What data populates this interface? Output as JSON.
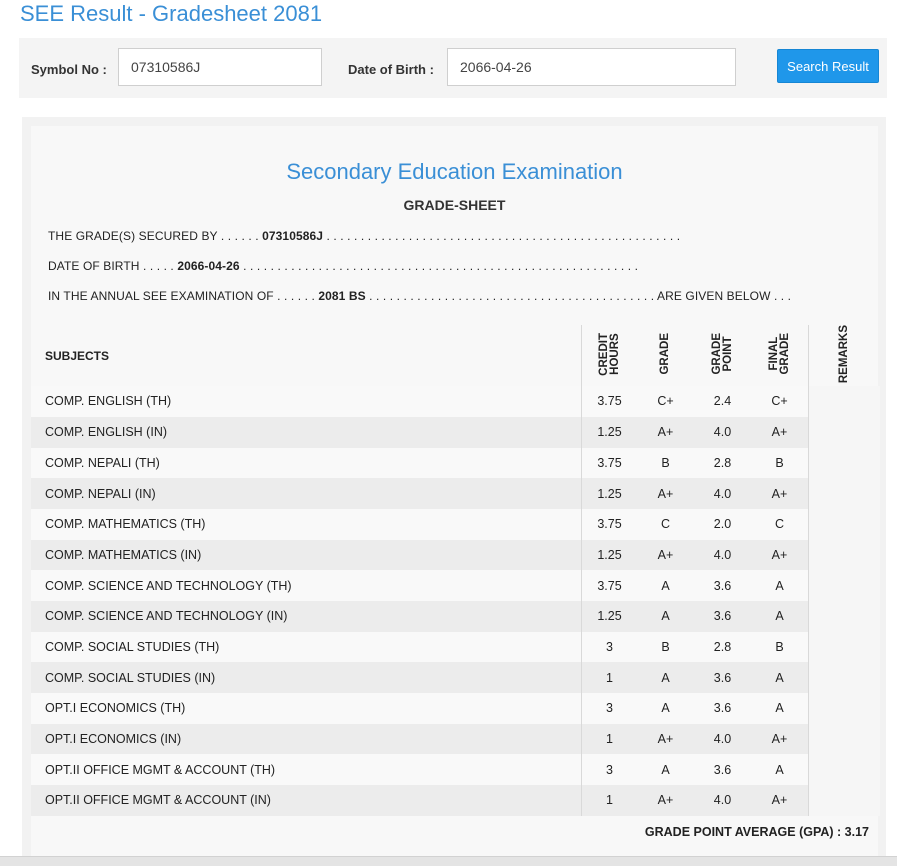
{
  "page": {
    "title": "SEE Result - Gradesheet 2081"
  },
  "search": {
    "symbol_label": "Symbol No :",
    "symbol_value": "07310586J",
    "dob_label": "Date of Birth :",
    "dob_value": "2066-04-26",
    "button_label": "Search Result"
  },
  "sheet": {
    "exam_title": "Secondary Education Examination",
    "subtitle": "GRADE-SHEET",
    "secured_by_label": "THE GRADE(S) SECURED BY . . . . . .",
    "secured_by_value": "07310586J",
    "secured_by_dots": " . . . . . . . . . . . . . . . . . . . . . . . . . . . . . . . . . . . . . . . . . . . . . . . . . . . .",
    "dob_label": "DATE OF BIRTH . . . . .",
    "dob_value": "2066-04-26",
    "dob_dots": " . . . . . . . . . . . . . . . . . . . . . . . . . . . . . . . . . . . . . . . . . . . . . . . . . . . . . . . . . .",
    "exam_label": "IN THE ANNUAL SEE EXAMINATION OF . . . . . .",
    "exam_value": "2081 BS",
    "exam_dots": " . . . . . . . . . . . . . . . . . . . . . . . . . . . . . . . . . . . . . . . . . . ",
    "exam_suffix": "ARE GIVEN BELOW . . .",
    "headers": {
      "subjects": "SUBJECTS",
      "credit_hours": "CREDIT\nHOURS",
      "grade": "GRADE",
      "grade_point": "GRADE\nPOINT",
      "final_grade": "FINAL\nGRADE",
      "remarks": "REMARKS"
    },
    "rows": [
      {
        "subject": "COMP. ENGLISH (TH)",
        "credit": "3.75",
        "grade": "C+",
        "point": "2.4",
        "final": "C+"
      },
      {
        "subject": "COMP. ENGLISH (IN)",
        "credit": "1.25",
        "grade": "A+",
        "point": "4.0",
        "final": "A+"
      },
      {
        "subject": "COMP. NEPALI (TH)",
        "credit": "3.75",
        "grade": "B",
        "point": "2.8",
        "final": "B"
      },
      {
        "subject": "COMP. NEPALI (IN)",
        "credit": "1.25",
        "grade": "A+",
        "point": "4.0",
        "final": "A+"
      },
      {
        "subject": "COMP. MATHEMATICS (TH)",
        "credit": "3.75",
        "grade": "C",
        "point": "2.0",
        "final": "C"
      },
      {
        "subject": "COMP. MATHEMATICS (IN)",
        "credit": "1.25",
        "grade": "A+",
        "point": "4.0",
        "final": "A+"
      },
      {
        "subject": "COMP. SCIENCE AND TECHNOLOGY (TH)",
        "credit": "3.75",
        "grade": "A",
        "point": "3.6",
        "final": "A"
      },
      {
        "subject": "COMP. SCIENCE AND TECHNOLOGY (IN)",
        "credit": "1.25",
        "grade": "A",
        "point": "3.6",
        "final": "A"
      },
      {
        "subject": "COMP. SOCIAL STUDIES (TH)",
        "credit": "3",
        "grade": "B",
        "point": "2.8",
        "final": "B"
      },
      {
        "subject": "COMP. SOCIAL STUDIES (IN)",
        "credit": "1",
        "grade": "A",
        "point": "3.6",
        "final": "A"
      },
      {
        "subject": "OPT.I ECONOMICS (TH)",
        "credit": "3",
        "grade": "A",
        "point": "3.6",
        "final": "A"
      },
      {
        "subject": "OPT.I ECONOMICS (IN)",
        "credit": "1",
        "grade": "A+",
        "point": "4.0",
        "final": "A+"
      },
      {
        "subject": "OPT.II OFFICE MGMT & ACCOUNT (TH)",
        "credit": "3",
        "grade": "A",
        "point": "3.6",
        "final": "A"
      },
      {
        "subject": "OPT.II OFFICE MGMT & ACCOUNT (IN)",
        "credit": "1",
        "grade": "A+",
        "point": "4.0",
        "final": "A+"
      }
    ],
    "gpa_label": "GRADE POINT AVERAGE (GPA) : 3.17"
  },
  "colors": {
    "accent": "#3a8fd6",
    "button": "#1f97ea"
  }
}
